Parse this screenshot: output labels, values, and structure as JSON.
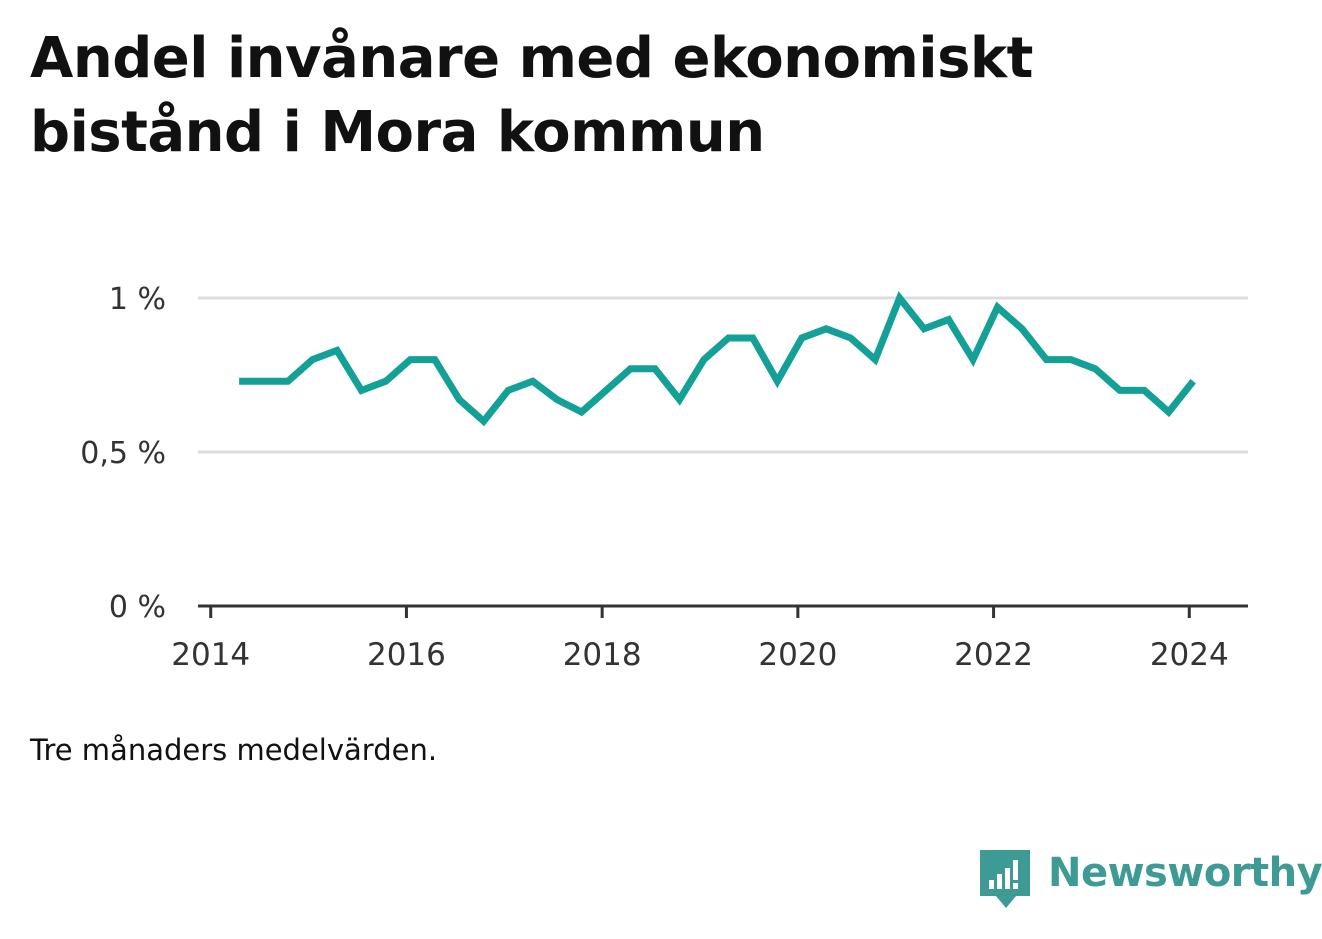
{
  "title": "Andel invånare med ekonomiskt bistånd i Mora kommun",
  "note": "Tre månaders medelvärden.",
  "brand": {
    "name": "Newsworthy",
    "icon": "newsworthy-logo-icon",
    "color": "#3d9a94"
  },
  "colors": {
    "line": "#13a096",
    "grid": "#dddddd",
    "axis": "#333333",
    "tick_text": "#333333"
  },
  "chart_data": {
    "type": "line",
    "x_tick_labels": [
      "2014",
      "2016",
      "2018",
      "2020",
      "2022",
      "2024"
    ],
    "y_tick_labels": [
      "0 %",
      "0,5 %",
      "1 %"
    ],
    "y_ticks": [
      0,
      0.5,
      1
    ],
    "x_ticks": [
      2014,
      2016,
      2018,
      2020,
      2022,
      2024
    ],
    "xlim": [
      2013.87,
      2024.6
    ],
    "ylim": [
      0,
      1
    ],
    "grid": true,
    "series": [
      {
        "x": [
          2014.29,
          2014.54,
          2014.79,
          2015.04,
          2015.29,
          2015.54,
          2015.79,
          2016.04,
          2016.29,
          2016.54,
          2016.79,
          2017.04,
          2017.29,
          2017.54,
          2017.79,
          2018.04,
          2018.29,
          2018.54,
          2018.79,
          2019.04,
          2019.29,
          2019.54,
          2019.79,
          2020.04,
          2020.29,
          2020.54,
          2020.79,
          2021.04,
          2021.29,
          2021.54,
          2021.79,
          2022.04,
          2022.29,
          2022.54,
          2022.79,
          2023.04,
          2023.29,
          2023.54,
          2023.79,
          2024.04
        ],
        "values": [
          0.73,
          0.73,
          0.73,
          0.8,
          0.83,
          0.7,
          0.73,
          0.8,
          0.8,
          0.67,
          0.6,
          0.7,
          0.73,
          0.67,
          0.63,
          0.7,
          0.77,
          0.77,
          0.67,
          0.8,
          0.87,
          0.87,
          0.73,
          0.87,
          0.9,
          0.87,
          0.8,
          1.0,
          0.9,
          0.93,
          0.8,
          0.97,
          0.9,
          0.8,
          0.8,
          0.77,
          0.7,
          0.7,
          0.63,
          0.73
        ]
      }
    ]
  }
}
